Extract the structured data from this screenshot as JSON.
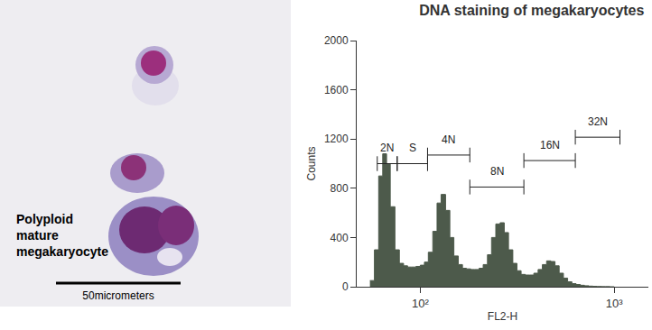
{
  "chart_data": {
    "type": "histogram",
    "title": "DNA staining of megakaryocytes",
    "x_label": "FL2-H",
    "y_label": "Counts",
    "log": "x",
    "color": "#4d5a4b",
    "grid": false,
    "bins": [
      55,
      58,
      61,
      64,
      67,
      70,
      74,
      78,
      82,
      86,
      90,
      95,
      100,
      105,
      110,
      116,
      122,
      128,
      135,
      142,
      149,
      157,
      165,
      173,
      182,
      191,
      201,
      211,
      222,
      233,
      245,
      258,
      271,
      285,
      300,
      315,
      331,
      348,
      366,
      385,
      405,
      426,
      448,
      471,
      495,
      520,
      547,
      575,
      605,
      636,
      669,
      703,
      739,
      777,
      817,
      859,
      903,
      950,
      1000
    ],
    "counts": [
      50,
      300,
      900,
      1080,
      1000,
      650,
      300,
      190,
      170,
      160,
      160,
      165,
      175,
      200,
      280,
      450,
      680,
      750,
      620,
      400,
      250,
      180,
      150,
      145,
      140,
      140,
      150,
      180,
      260,
      400,
      510,
      520,
      440,
      300,
      190,
      130,
      100,
      95,
      95,
      110,
      140,
      180,
      210,
      205,
      170,
      110,
      70,
      40,
      25,
      18,
      12,
      8,
      5,
      3,
      2,
      1,
      1,
      0
    ],
    "xlim": [
      47,
      1500
    ],
    "xticks": [
      {
        "value": 100,
        "label": "10²"
      },
      {
        "value": 1000,
        "label": "10³"
      }
    ],
    "ylim": [
      0,
      2000
    ],
    "yticks": [
      0,
      400,
      800,
      1200,
      1600,
      2000
    ],
    "gates": [
      {
        "label": "2N",
        "x": [
          60,
          76
        ],
        "y": 1000
      },
      {
        "label": "S",
        "x": [
          76,
          109
        ],
        "y": 1000
      },
      {
        "label": "4N",
        "x": [
          109,
          180
        ],
        "y": 1070
      },
      {
        "label": "8N",
        "x": [
          180,
          342
        ],
        "y": 810
      },
      {
        "label": "16N",
        "x": [
          342,
          630
        ],
        "y": 1025
      },
      {
        "label": "32N",
        "x": [
          630,
          1070
        ],
        "y": 1215
      }
    ]
  },
  "image": {
    "label": [
      "Polyploid",
      "mature",
      "megakaryocyte"
    ],
    "scale_bar": "50micrometers"
  }
}
